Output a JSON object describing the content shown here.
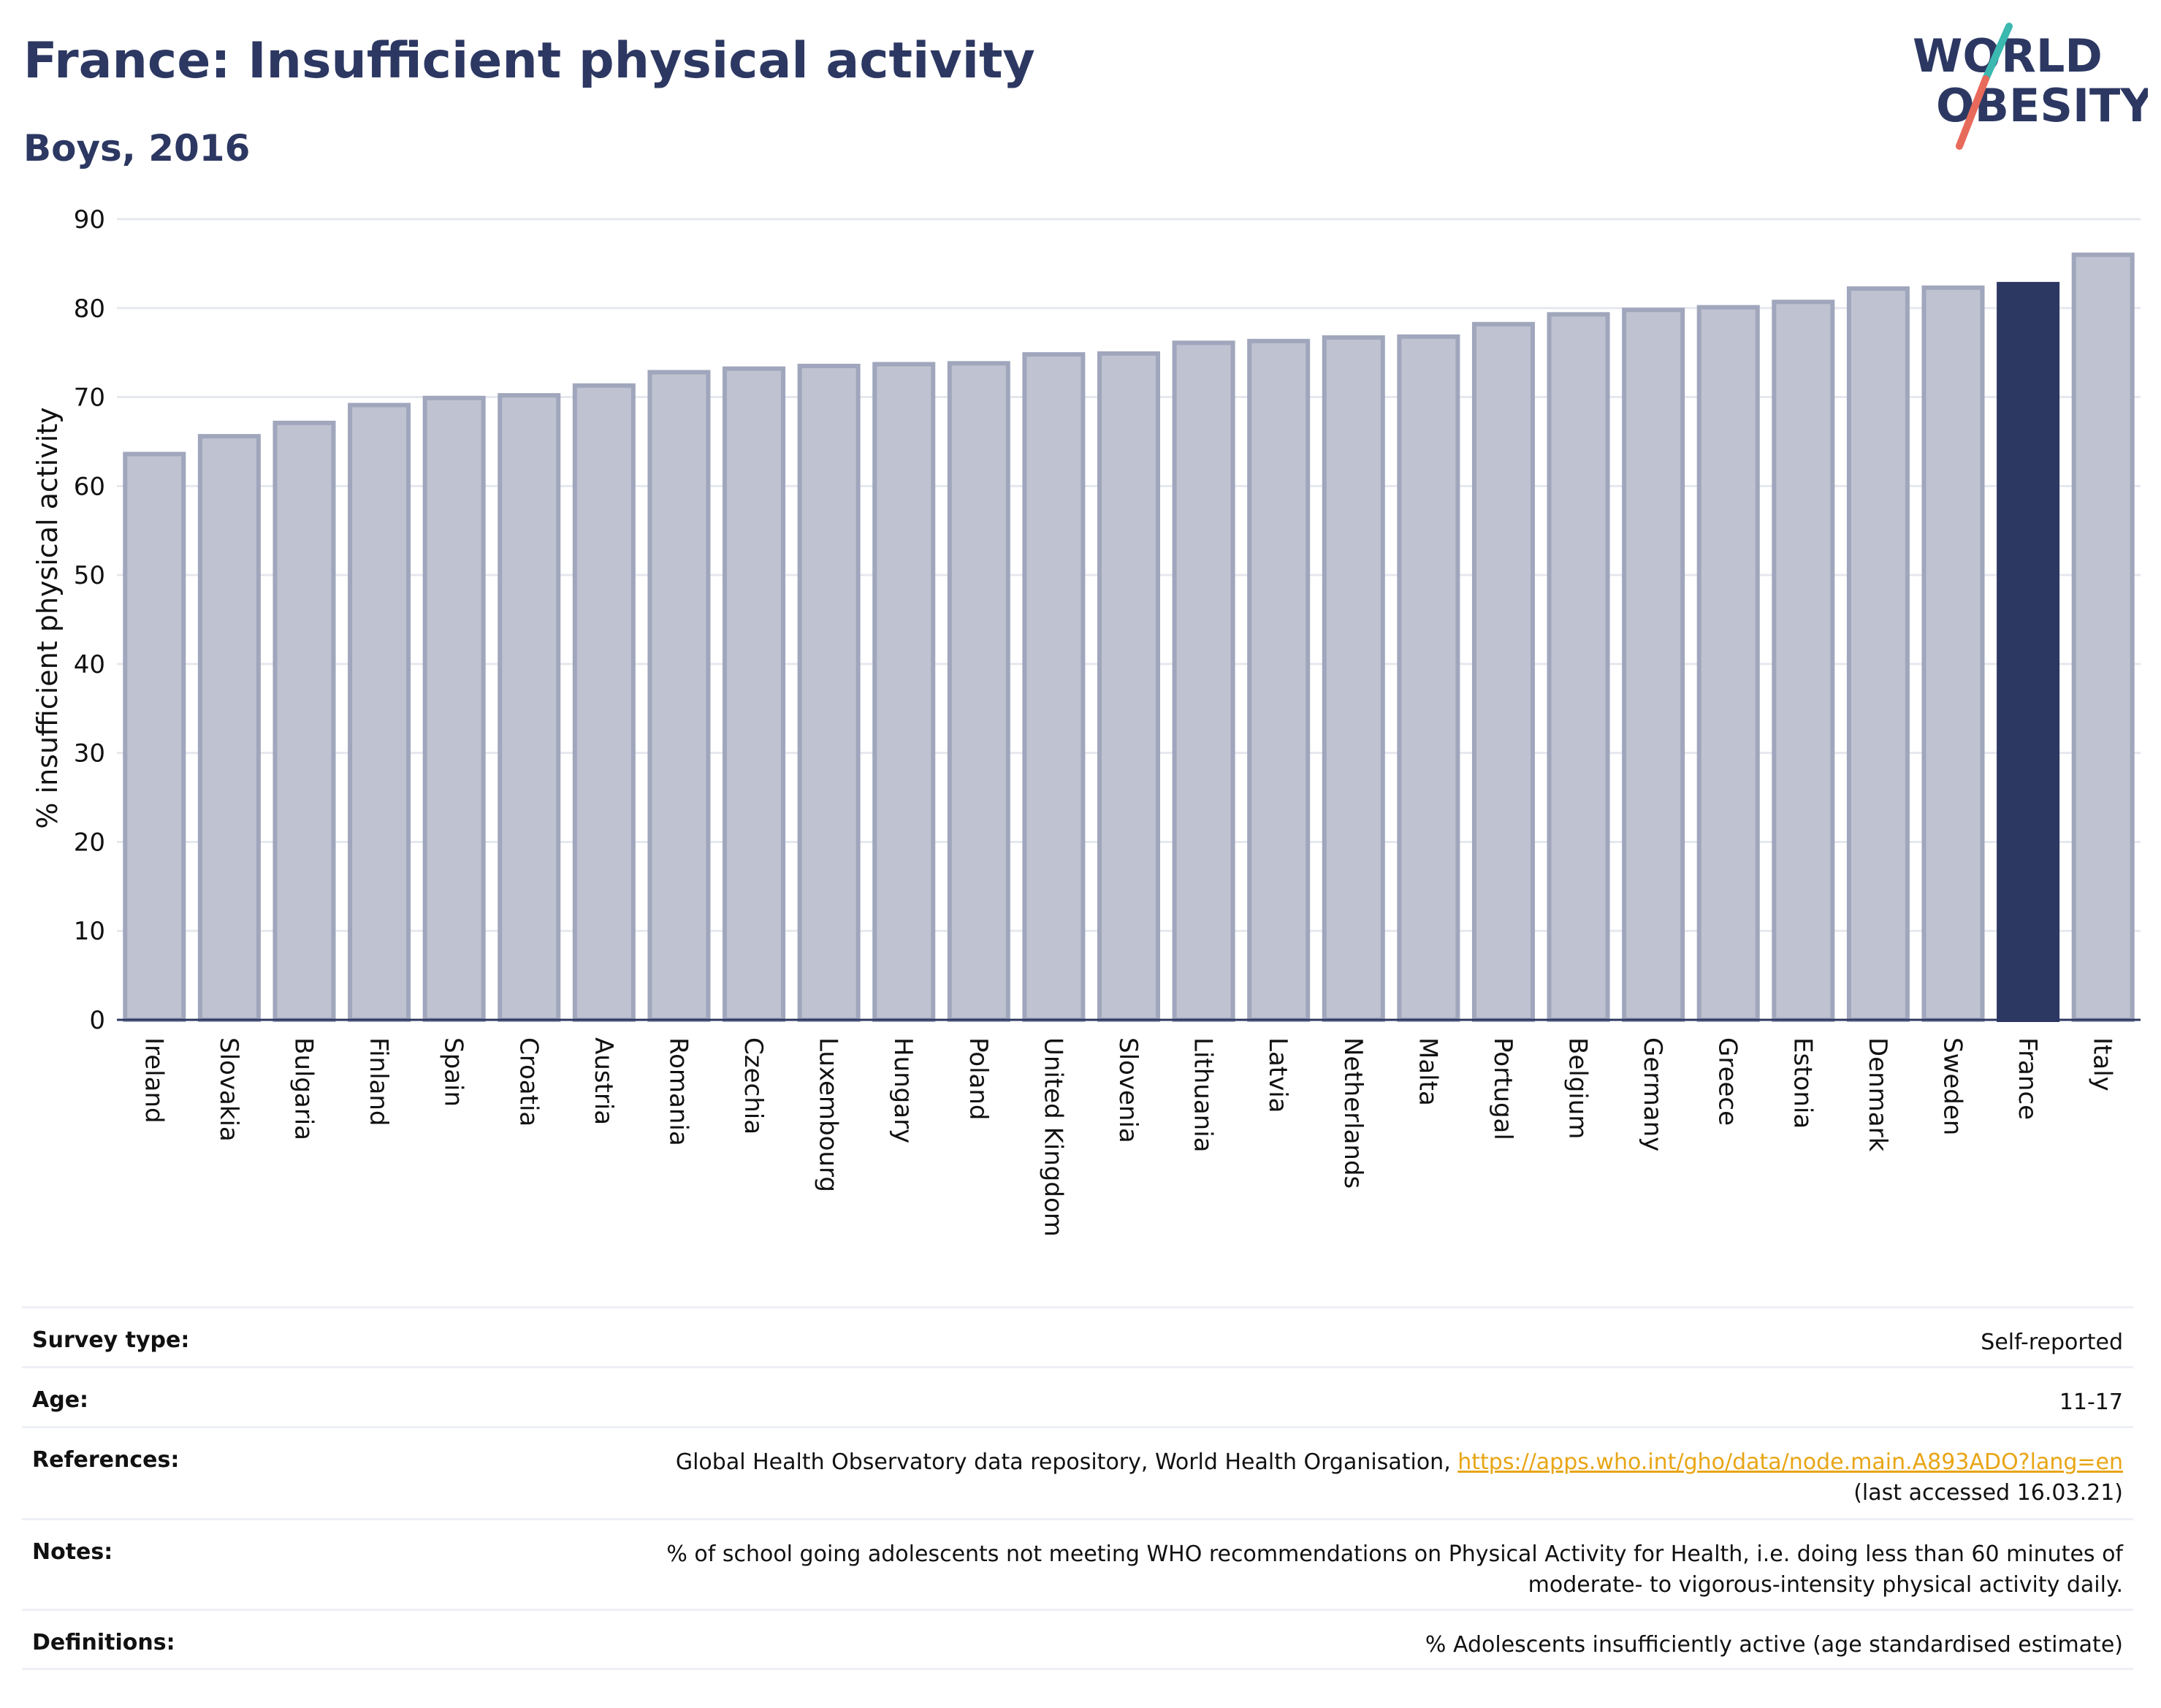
{
  "header": {
    "title": "France: Insufficient physical activity",
    "subtitle": "Boys, 2016"
  },
  "logo": {
    "line1": "WORLD",
    "line2": "OBESITY"
  },
  "colors": {
    "highlight": "#2c3862",
    "bar_fill": "#bfc2d0",
    "bar_stroke": "#a0a6bc",
    "accent_link": "#e8a515"
  },
  "chart_data": {
    "type": "bar",
    "ylabel": "% insufficient physical activity",
    "xlabel": "",
    "ylim": [
      0,
      90
    ],
    "yticks": [
      0,
      10,
      20,
      30,
      40,
      50,
      60,
      70,
      80,
      90
    ],
    "grid": true,
    "highlight": "France",
    "categories": [
      "Ireland",
      "Slovakia",
      "Bulgaria",
      "Finland",
      "Spain",
      "Croatia",
      "Austria",
      "Romania",
      "Czechia",
      "Luxembourg",
      "Hungary",
      "Poland",
      "United Kingdom",
      "Slovenia",
      "Lithuania",
      "Latvia",
      "Netherlands",
      "Malta",
      "Portugal",
      "Belgium",
      "Germany",
      "Greece",
      "Estonia",
      "Denmark",
      "Sweden",
      "France",
      "Italy"
    ],
    "values": [
      63.6,
      65.6,
      67.1,
      69.1,
      69.9,
      70.2,
      71.3,
      72.8,
      73.2,
      73.5,
      73.7,
      73.8,
      74.8,
      74.9,
      76.1,
      76.3,
      76.7,
      76.8,
      78.2,
      79.3,
      79.8,
      80.1,
      80.7,
      82.2,
      82.3,
      82.7,
      86.0
    ]
  },
  "info": {
    "survey_type": {
      "label": "Survey type:",
      "value": "Self-reported"
    },
    "age": {
      "label": "Age:",
      "value": "11-17"
    },
    "references": {
      "label": "References:",
      "text": "Global Health Observatory data repository, World Health Organisation, ",
      "link": "https://apps.who.int/gho/data/node.main.A893ADO?lang=en",
      "accessed": "(last accessed 16.03.21)"
    },
    "notes": {
      "label": "Notes:",
      "line1": "% of school going adolescents not meeting WHO recommendations on Physical Activity for Health, i.e. doing less than 60 minutes of",
      "line2": "moderate- to vigorous-intensity physical activity daily."
    },
    "definitions": {
      "label": "Definitions:",
      "value": "% Adolescents insufficiently active (age standardised estimate)"
    }
  }
}
